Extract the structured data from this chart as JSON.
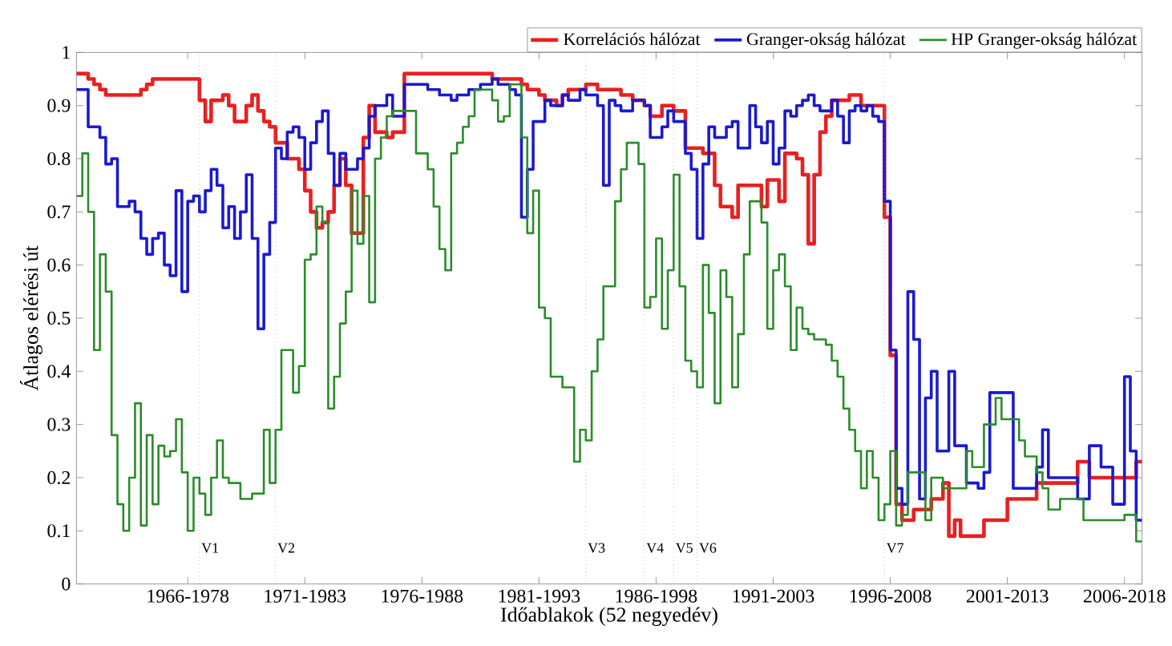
{
  "chart_data": {
    "type": "step",
    "xlabel": "Időablakok (52 negyedév)",
    "ylabel": "Átlagos elérési út",
    "categories": [
      null,
      null,
      null,
      null,
      null,
      null,
      null,
      null,
      null,
      null,
      null,
      null,
      null,
      null,
      null,
      null,
      null,
      null,
      null,
      "1966-1978",
      null,
      null,
      null,
      null,
      null,
      null,
      null,
      null,
      null,
      null,
      null,
      null,
      null,
      null,
      null,
      null,
      null,
      null,
      null,
      "1971-1983",
      null,
      null,
      null,
      null,
      null,
      null,
      null,
      null,
      null,
      null,
      null,
      null,
      null,
      null,
      null,
      null,
      null,
      null,
      null,
      "1976-1988",
      null,
      null,
      null,
      null,
      null,
      null,
      null,
      null,
      null,
      null,
      null,
      null,
      null,
      null,
      null,
      null,
      null,
      null,
      null,
      "1981-1993",
      null,
      null,
      null,
      null,
      null,
      null,
      null,
      null,
      null,
      null,
      null,
      null,
      null,
      null,
      null,
      null,
      null,
      null,
      null,
      "1986-1998",
      null,
      null,
      null,
      null,
      null,
      null,
      null,
      null,
      null,
      null,
      null,
      null,
      null,
      null,
      null,
      null,
      null,
      null,
      null,
      "1991-2003",
      null,
      null,
      null,
      null,
      null,
      null,
      null,
      null,
      null,
      null,
      null,
      null,
      null,
      null,
      null,
      null,
      null,
      null,
      null,
      "1996-2008",
      null,
      null,
      null,
      null,
      null,
      null,
      null,
      null,
      null,
      null,
      null,
      null,
      null,
      null,
      null,
      null,
      null,
      null,
      null,
      "2001-2013",
      null,
      null,
      null,
      null,
      null,
      null,
      null,
      null,
      null,
      null,
      null,
      null,
      null,
      null,
      null,
      null,
      null,
      null,
      null,
      "2006-2018",
      null,
      null,
      null
    ],
    "ylim": [
      0,
      1
    ],
    "yticks": [
      0,
      0.1,
      0.2,
      0.3,
      0.4,
      0.5,
      0.6,
      0.7,
      0.8,
      0.9,
      1
    ],
    "legend": "top right",
    "annotations": [
      "V1",
      "V2",
      "V3",
      "V4",
      "V5",
      "V6",
      "V7"
    ],
    "series": [
      {
        "name": "Korrelációs hálózat",
        "color": "#e82020",
        "values": [
          0.96,
          0.96,
          0.95,
          0.94,
          0.93,
          0.92,
          0.92,
          0.92,
          0.92,
          0.92,
          0.92,
          0.93,
          0.94,
          0.95,
          0.95,
          0.95,
          0.95,
          0.95,
          0.95,
          0.95,
          0.95,
          0.91,
          0.87,
          0.91,
          0.91,
          0.92,
          0.9,
          0.87,
          0.87,
          0.9,
          0.92,
          0.89,
          0.87,
          0.86,
          0.83,
          0.83,
          0.8,
          0.8,
          0.78,
          0.74,
          0.7,
          0.67,
          0.68,
          0.7,
          0.75,
          0.8,
          0.75,
          0.66,
          0.66,
          0.84,
          0.9,
          0.85,
          0.85,
          0.84,
          0.85,
          0.85,
          0.96,
          0.96,
          0.96,
          0.96,
          0.96,
          0.96,
          0.96,
          0.96,
          0.96,
          0.96,
          0.96,
          0.96,
          0.96,
          0.96,
          0.96,
          0.95,
          0.95,
          0.95,
          0.95,
          0.95,
          0.94,
          0.93,
          0.93,
          0.92,
          0.91,
          0.91,
          0.9,
          0.92,
          0.93,
          0.93,
          0.93,
          0.94,
          0.94,
          0.93,
          0.93,
          0.93,
          0.93,
          0.92,
          0.92,
          0.91,
          0.91,
          0.9,
          0.88,
          0.88,
          0.9,
          0.9,
          0.89,
          0.89,
          0.82,
          0.82,
          0.82,
          0.81,
          0.81,
          0.75,
          0.71,
          0.71,
          0.69,
          0.75,
          0.75,
          0.75,
          0.75,
          0.71,
          0.76,
          0.76,
          0.72,
          0.81,
          0.81,
          0.8,
          0.77,
          0.64,
          0.77,
          0.85,
          0.88,
          0.91,
          0.91,
          0.91,
          0.92,
          0.92,
          0.9,
          0.9,
          0.9,
          0.9,
          0.69,
          0.43,
          0.15,
          0.12,
          0.12,
          0.14,
          0.14,
          0.14,
          0.16,
          0.16,
          0.19,
          0.09,
          0.12,
          0.09,
          0.09,
          0.09,
          0.09,
          0.12,
          0.12,
          0.12,
          0.12,
          0.16,
          0.16,
          0.16,
          0.16,
          0.16,
          0.19,
          0.19,
          0.19,
          0.19,
          0.19,
          0.19,
          0.19,
          0.23,
          0.23,
          0.2,
          0.2,
          0.2,
          0.2,
          0.2,
          0.2,
          0.2,
          0.2,
          0.23,
          0.23
        ]
      },
      {
        "name": "Granger-okság hálózat",
        "color": "#1a1ad0",
        "values": [
          0.93,
          0.93,
          0.86,
          0.86,
          0.84,
          0.79,
          0.8,
          0.71,
          0.71,
          0.72,
          0.7,
          0.65,
          0.62,
          0.65,
          0.66,
          0.6,
          0.58,
          0.74,
          0.55,
          0.72,
          0.73,
          0.7,
          0.74,
          0.78,
          0.75,
          0.67,
          0.71,
          0.65,
          0.7,
          0.77,
          0.65,
          0.48,
          0.62,
          0.68,
          0.82,
          0.8,
          0.85,
          0.86,
          0.84,
          0.78,
          0.83,
          0.87,
          0.89,
          0.81,
          0.75,
          0.81,
          0.78,
          0.78,
          0.8,
          0.82,
          0.88,
          0.9,
          0.9,
          0.92,
          0.88,
          0.88,
          0.94,
          0.94,
          0.94,
          0.94,
          0.93,
          0.93,
          0.92,
          0.92,
          0.91,
          0.92,
          0.92,
          0.93,
          0.93,
          0.94,
          0.94,
          0.95,
          0.94,
          0.94,
          0.93,
          0.92,
          0.69,
          0.78,
          0.87,
          0.87,
          0.91,
          0.9,
          0.9,
          0.92,
          0.91,
          0.91,
          0.93,
          0.92,
          0.92,
          0.9,
          0.75,
          0.91,
          0.9,
          0.89,
          0.89,
          0.91,
          0.91,
          0.9,
          0.84,
          0.84,
          0.86,
          0.89,
          0.87,
          0.87,
          0.81,
          0.78,
          0.65,
          0.79,
          0.86,
          0.84,
          0.84,
          0.86,
          0.87,
          0.82,
          0.82,
          0.9,
          0.86,
          0.83,
          0.87,
          0.79,
          0.82,
          0.89,
          0.88,
          0.9,
          0.91,
          0.92,
          0.9,
          0.89,
          0.89,
          0.91,
          0.88,
          0.83,
          0.89,
          0.9,
          0.89,
          0.9,
          0.88,
          0.87,
          0.72,
          0.44,
          0.18,
          0.15,
          0.55,
          0.46,
          0.16,
          0.35,
          0.4,
          0.25,
          0.25,
          0.4,
          0.26,
          0.26,
          0.19,
          0.19,
          0.18,
          0.21,
          0.36,
          0.36,
          0.36,
          0.36,
          0.18,
          0.18,
          0.18,
          0.18,
          0.22,
          0.29,
          0.2,
          0.2,
          0.2,
          0.2,
          0.2,
          0.16,
          0.16,
          0.26,
          0.26,
          0.22,
          0.22,
          0.15,
          0.15,
          0.39,
          0.25,
          0.12,
          0.12
        ]
      },
      {
        "name": "HP Granger-okság hálózat",
        "color": "#2a8c2a",
        "values": [
          0.73,
          0.81,
          0.7,
          0.44,
          0.62,
          0.55,
          0.28,
          0.15,
          0.1,
          0.2,
          0.34,
          0.11,
          0.28,
          0.15,
          0.26,
          0.24,
          0.25,
          0.31,
          0.21,
          0.1,
          0.2,
          0.17,
          0.13,
          0.2,
          0.27,
          0.2,
          0.19,
          0.19,
          0.16,
          0.16,
          0.17,
          0.17,
          0.29,
          0.19,
          0.29,
          0.44,
          0.44,
          0.36,
          0.41,
          0.61,
          0.62,
          0.71,
          0.68,
          0.33,
          0.39,
          0.49,
          0.55,
          0.74,
          0.64,
          0.73,
          0.53,
          0.8,
          0.84,
          0.88,
          0.89,
          0.89,
          0.89,
          0.89,
          0.81,
          0.81,
          0.78,
          0.71,
          0.63,
          0.59,
          0.81,
          0.83,
          0.86,
          0.88,
          0.93,
          0.93,
          0.93,
          0.91,
          0.87,
          0.88,
          0.94,
          0.94,
          0.84,
          0.66,
          0.74,
          0.52,
          0.5,
          0.39,
          0.39,
          0.37,
          0.37,
          0.23,
          0.29,
          0.27,
          0.4,
          0.46,
          0.56,
          0.56,
          0.72,
          0.78,
          0.83,
          0.83,
          0.79,
          0.52,
          0.54,
          0.65,
          0.48,
          0.59,
          0.77,
          0.56,
          0.42,
          0.4,
          0.37,
          0.6,
          0.51,
          0.34,
          0.59,
          0.54,
          0.37,
          0.47,
          0.62,
          0.72,
          0.72,
          0.68,
          0.48,
          0.59,
          0.62,
          0.56,
          0.44,
          0.52,
          0.48,
          0.47,
          0.46,
          0.46,
          0.45,
          0.42,
          0.39,
          0.33,
          0.29,
          0.25,
          0.18,
          0.25,
          0.2,
          0.12,
          0.15,
          0.25,
          0.11,
          0.13,
          0.21,
          0.21,
          0.21,
          0.12,
          0.2,
          0.2,
          0.18,
          0.18,
          0.18,
          0.18,
          0.25,
          0.22,
          0.22,
          0.3,
          0.3,
          0.35,
          0.31,
          0.31,
          0.31,
          0.27,
          0.24,
          0.24,
          0.21,
          0.18,
          0.14,
          0.14,
          0.16,
          0.16,
          0.16,
          0.16,
          0.12,
          0.12,
          0.12,
          0.12,
          0.12,
          0.12,
          0.12,
          0.13,
          0.13,
          0.08,
          0.08
        ]
      }
    ]
  }
}
